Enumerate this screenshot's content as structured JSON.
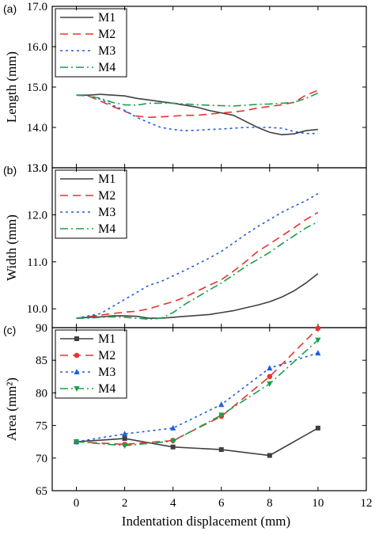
{
  "chart_data": [
    {
      "panel": "(a)",
      "type": "line",
      "ylabel": "Length (mm)",
      "xlabel": "",
      "xlim": [
        -1,
        12
      ],
      "ylim": [
        13.0,
        17.0
      ],
      "yticks": [
        13.0,
        14.0,
        15.0,
        16.0,
        17.0
      ],
      "ytick_labels": [
        "13.0",
        "14.0",
        "15.0",
        "16.0",
        "17.0"
      ],
      "legend_placement": "top-left",
      "series": [
        {
          "name": "M1",
          "color": "#404040",
          "dash": "solid",
          "x": [
            0,
            0.5,
            1.0,
            1.5,
            2.0,
            2.5,
            3.0,
            3.5,
            4.0,
            4.5,
            5.0,
            5.5,
            6.0,
            6.5,
            7.0,
            7.5,
            8.0,
            8.5,
            9.0,
            9.5,
            10.0
          ],
          "y": [
            14.8,
            14.8,
            14.82,
            14.8,
            14.78,
            14.72,
            14.68,
            14.64,
            14.6,
            14.55,
            14.5,
            14.42,
            14.36,
            14.3,
            14.15,
            14.0,
            13.88,
            13.82,
            13.84,
            13.92,
            13.95
          ]
        },
        {
          "name": "M2",
          "color": "#e8332e",
          "dash": "10,6",
          "x": [
            0,
            0.5,
            1.0,
            1.5,
            2.0,
            2.5,
            3.0,
            3.5,
            4.0,
            4.5,
            5.0,
            5.5,
            6.0,
            6.5,
            7.0,
            7.5,
            8.0,
            8.5,
            9.0,
            9.5,
            10.0
          ],
          "y": [
            14.8,
            14.78,
            14.65,
            14.52,
            14.4,
            14.28,
            14.25,
            14.26,
            14.28,
            14.3,
            14.3,
            14.33,
            14.36,
            14.38,
            14.42,
            14.48,
            14.52,
            14.56,
            14.62,
            14.8,
            14.92
          ]
        },
        {
          "name": "M3",
          "color": "#1f5fd6",
          "dash": "3,4",
          "x": [
            0,
            0.5,
            1.0,
            1.5,
            2.0,
            2.5,
            3.0,
            3.5,
            4.0,
            4.5,
            5.0,
            5.5,
            6.0,
            6.5,
            7.0,
            7.5,
            8.0,
            8.5,
            9.0,
            9.5,
            10.0
          ],
          "y": [
            14.8,
            14.78,
            14.7,
            14.55,
            14.42,
            14.25,
            14.12,
            14.0,
            13.95,
            13.92,
            13.93,
            13.95,
            13.96,
            13.98,
            14.0,
            14.0,
            14.0,
            13.98,
            13.9,
            13.85,
            13.85
          ]
        },
        {
          "name": "M4",
          "color": "#19a04a",
          "dash": "10,4,2,4",
          "x": [
            0,
            0.5,
            1.0,
            1.5,
            2.0,
            2.5,
            3.0,
            3.5,
            4.0,
            4.5,
            5.0,
            5.5,
            6.0,
            6.5,
            7.0,
            7.5,
            8.0,
            8.5,
            9.0,
            9.5,
            10.0
          ],
          "y": [
            14.8,
            14.78,
            14.72,
            14.62,
            14.56,
            14.55,
            14.6,
            14.6,
            14.6,
            14.58,
            14.56,
            14.55,
            14.54,
            14.53,
            14.55,
            14.57,
            14.58,
            14.6,
            14.62,
            14.72,
            14.85
          ]
        }
      ]
    },
    {
      "panel": "(b)",
      "type": "line",
      "ylabel": "Width (mm)",
      "xlabel": "",
      "xlim": [
        -1,
        12
      ],
      "ylim": [
        9.6,
        13.0
      ],
      "yticks": [
        10.0,
        11.0,
        12.0,
        13.0
      ],
      "ytick_labels": [
        "10.0",
        "11.0",
        "12.0",
        "13.0"
      ],
      "legend_placement": "top-left",
      "series": [
        {
          "name": "M1",
          "color": "#404040",
          "dash": "solid",
          "x": [
            0,
            0.5,
            1.0,
            1.5,
            2.0,
            2.5,
            3.0,
            3.5,
            4.0,
            4.5,
            5.0,
            5.5,
            6.0,
            6.5,
            7.0,
            7.5,
            8.0,
            8.5,
            9.0,
            9.5,
            10.0
          ],
          "y": [
            9.8,
            9.82,
            9.83,
            9.85,
            9.85,
            9.84,
            9.8,
            9.8,
            9.82,
            9.84,
            9.86,
            9.88,
            9.92,
            9.96,
            10.02,
            10.08,
            10.15,
            10.25,
            10.38,
            10.55,
            10.75
          ]
        },
        {
          "name": "M2",
          "color": "#e8332e",
          "dash": "10,6",
          "x": [
            0,
            0.5,
            1.0,
            1.5,
            2.0,
            2.5,
            3.0,
            3.5,
            4.0,
            4.5,
            5.0,
            5.5,
            6.0,
            6.5,
            7.0,
            7.5,
            8.0,
            8.5,
            9.0,
            9.5,
            10.0
          ],
          "y": [
            9.8,
            9.83,
            9.87,
            9.9,
            9.93,
            9.95,
            10.0,
            10.08,
            10.15,
            10.25,
            10.38,
            10.5,
            10.62,
            10.8,
            11.0,
            11.22,
            11.38,
            11.55,
            11.72,
            11.9,
            12.05
          ]
        },
        {
          "name": "M3",
          "color": "#1f5fd6",
          "dash": "3,4",
          "x": [
            0,
            0.5,
            1.0,
            1.5,
            2.0,
            2.5,
            3.0,
            3.5,
            4.0,
            4.5,
            5.0,
            5.5,
            6.0,
            6.5,
            7.0,
            7.5,
            8.0,
            8.5,
            9.0,
            9.5,
            10.0
          ],
          "y": [
            9.8,
            9.85,
            9.9,
            10.05,
            10.2,
            10.35,
            10.5,
            10.58,
            10.7,
            10.82,
            10.95,
            11.08,
            11.22,
            11.4,
            11.58,
            11.75,
            11.9,
            12.05,
            12.18,
            12.3,
            12.45
          ]
        },
        {
          "name": "M4",
          "color": "#19a04a",
          "dash": "10,4,2,4",
          "x": [
            0,
            0.5,
            1.0,
            1.5,
            2.0,
            2.5,
            3.0,
            3.5,
            4.0,
            4.5,
            5.0,
            5.5,
            6.0,
            6.5,
            7.0,
            7.5,
            8.0,
            8.5,
            9.0,
            9.5,
            10.0
          ],
          "y": [
            9.8,
            9.8,
            9.82,
            9.83,
            9.82,
            9.8,
            9.78,
            9.8,
            9.92,
            10.1,
            10.25,
            10.4,
            10.55,
            10.72,
            10.9,
            11.05,
            11.2,
            11.38,
            11.55,
            11.72,
            11.85
          ]
        }
      ]
    },
    {
      "panel": "(c)",
      "type": "line",
      "ylabel": "Area (mm²)",
      "xlabel": "Indentation displacement (mm)",
      "xlim": [
        -1,
        12
      ],
      "ylim": [
        65,
        90
      ],
      "xticks": [
        0,
        2,
        4,
        6,
        8,
        10,
        12
      ],
      "xtick_labels": [
        "0",
        "2",
        "4",
        "6",
        "8",
        "10",
        "12"
      ],
      "yticks": [
        65,
        70,
        75,
        80,
        85,
        90
      ],
      "ytick_labels": [
        "65",
        "70",
        "75",
        "80",
        "85",
        "90"
      ],
      "legend_placement": "top-left",
      "series": [
        {
          "name": "M1",
          "color": "#404040",
          "dash": "solid",
          "marker": "square",
          "x": [
            0,
            2,
            4,
            6,
            8,
            10
          ],
          "y": [
            72.5,
            73.0,
            71.7,
            71.3,
            70.4,
            74.6
          ]
        },
        {
          "name": "M2",
          "color": "#e8332e",
          "dash": "10,6",
          "marker": "circle",
          "x": [
            0,
            2,
            4,
            6,
            8,
            10
          ],
          "y": [
            72.5,
            72.1,
            72.7,
            76.4,
            82.5,
            89.9
          ]
        },
        {
          "name": "M3",
          "color": "#1f5fd6",
          "dash": "3,4",
          "marker": "triangle-up",
          "x": [
            0,
            2,
            4,
            6,
            8,
            10
          ],
          "y": [
            72.5,
            73.7,
            74.6,
            78.2,
            83.8,
            86.1
          ]
        },
        {
          "name": "M4",
          "color": "#19a04a",
          "dash": "10,4,2,4",
          "marker": "triangle-down",
          "x": [
            0,
            2,
            4,
            6,
            8,
            10
          ],
          "y": [
            72.5,
            71.9,
            72.6,
            76.6,
            81.4,
            88.1
          ]
        }
      ]
    }
  ]
}
